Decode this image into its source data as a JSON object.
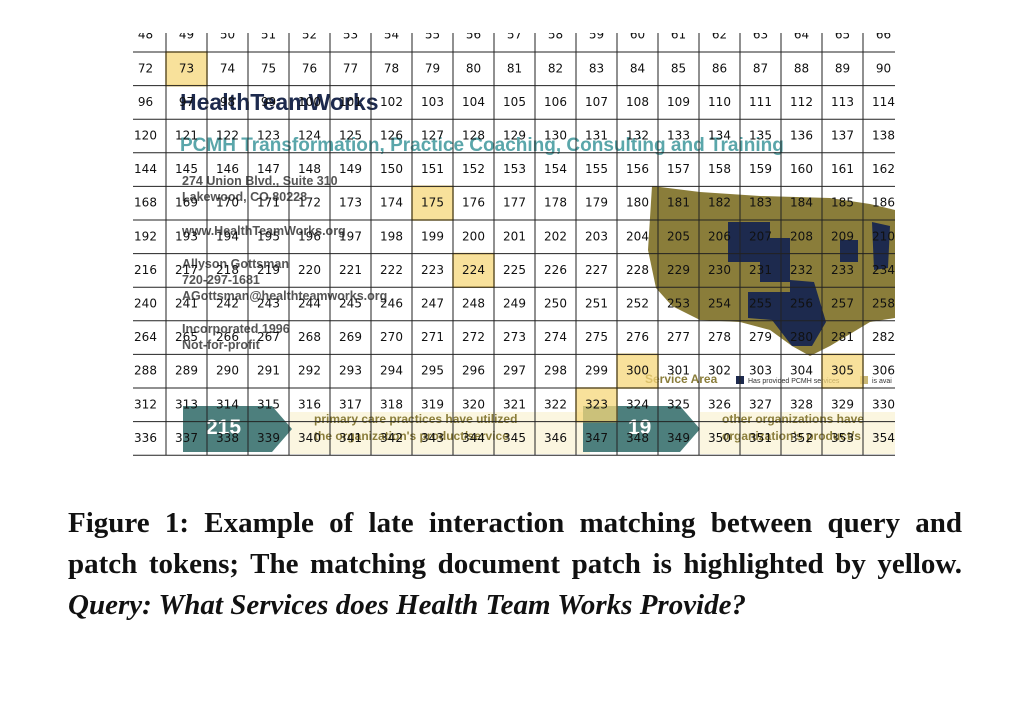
{
  "document": {
    "org_name": "HealthTeamWorks",
    "tagline": "PCMH Transformation, Practice Coaching, Consulting and Training",
    "address_1": "274 Union Blvd., Suite 310",
    "address_2": "Lakewood, CO 80228",
    "website": "www.HealthTeamWorks.org",
    "contact_name": "Allyson Gottsman",
    "phone": "720-297-1681",
    "email": "AGottsman@healthteamworks.org",
    "incorporated": "Incorporated 1996",
    "status": "Not-for-profit",
    "map_title": "Service Area",
    "map_legend_1": "Has provided PCMH services",
    "map_legend_2": "is avai",
    "stat_1_value": "215",
    "stat_1_line_1": "primary care practices have utilized",
    "stat_1_line_2": "the organization's product/service",
    "stat_2_value": "19",
    "stat_2_line_1": "other organizations have",
    "stat_2_line_2": "organization's product/s"
  },
  "patch_grid": {
    "rows": [
      [
        48,
        49,
        50,
        51,
        52,
        53,
        54,
        55,
        56,
        57,
        58,
        59,
        60,
        61,
        62,
        63,
        64,
        65,
        66
      ],
      [
        72,
        73,
        74,
        75,
        76,
        77,
        78,
        79,
        80,
        81,
        82,
        83,
        84,
        85,
        86,
        87,
        88,
        89,
        90
      ],
      [
        96,
        97,
        98,
        99,
        100,
        101,
        102,
        103,
        104,
        105,
        106,
        107,
        108,
        109,
        110,
        111,
        112,
        113,
        114
      ],
      [
        120,
        121,
        122,
        123,
        124,
        125,
        126,
        127,
        128,
        129,
        130,
        131,
        132,
        133,
        134,
        135,
        136,
        137,
        138
      ],
      [
        144,
        145,
        146,
        147,
        148,
        149,
        150,
        151,
        152,
        153,
        154,
        155,
        156,
        157,
        158,
        159,
        160,
        161,
        162
      ],
      [
        168,
        169,
        170,
        171,
        172,
        173,
        174,
        175,
        176,
        177,
        178,
        179,
        180,
        181,
        182,
        183,
        184,
        185,
        186
      ],
      [
        192,
        193,
        194,
        195,
        196,
        197,
        198,
        199,
        200,
        201,
        202,
        203,
        204,
        205,
        206,
        207,
        208,
        209,
        210
      ],
      [
        216,
        217,
        218,
        219,
        220,
        221,
        222,
        223,
        224,
        225,
        226,
        227,
        228,
        229,
        230,
        231,
        232,
        233,
        234
      ],
      [
        240,
        241,
        242,
        243,
        244,
        245,
        246,
        247,
        248,
        249,
        250,
        251,
        252,
        253,
        254,
        255,
        256,
        257,
        258
      ],
      [
        264,
        265,
        266,
        267,
        268,
        269,
        270,
        271,
        272,
        273,
        274,
        275,
        276,
        277,
        278,
        279,
        280,
        281,
        282
      ],
      [
        288,
        289,
        290,
        291,
        292,
        293,
        294,
        295,
        296,
        297,
        298,
        299,
        300,
        301,
        302,
        303,
        304,
        305,
        306
      ],
      [
        312,
        313,
        314,
        315,
        316,
        317,
        318,
        319,
        320,
        321,
        322,
        323,
        324,
        325,
        326,
        327,
        328,
        329,
        330
      ],
      [
        336,
        337,
        338,
        339,
        340,
        341,
        342,
        343,
        344,
        345,
        346,
        347,
        348,
        349,
        350,
        351,
        352,
        353,
        354
      ]
    ],
    "highlighted": [
      [
        1,
        1
      ],
      [
        5,
        7
      ],
      [
        7,
        8
      ],
      [
        10,
        12
      ],
      [
        10,
        17
      ],
      [
        11,
        11
      ]
    ],
    "highlight_color": "#f5d77a"
  },
  "caption": {
    "text": "Figure 1: Example of late interaction matching between query and patch tokens; The matching document patch is highlighted by yellow.",
    "query": "Query: What Services does Health Team Works Provide?"
  }
}
